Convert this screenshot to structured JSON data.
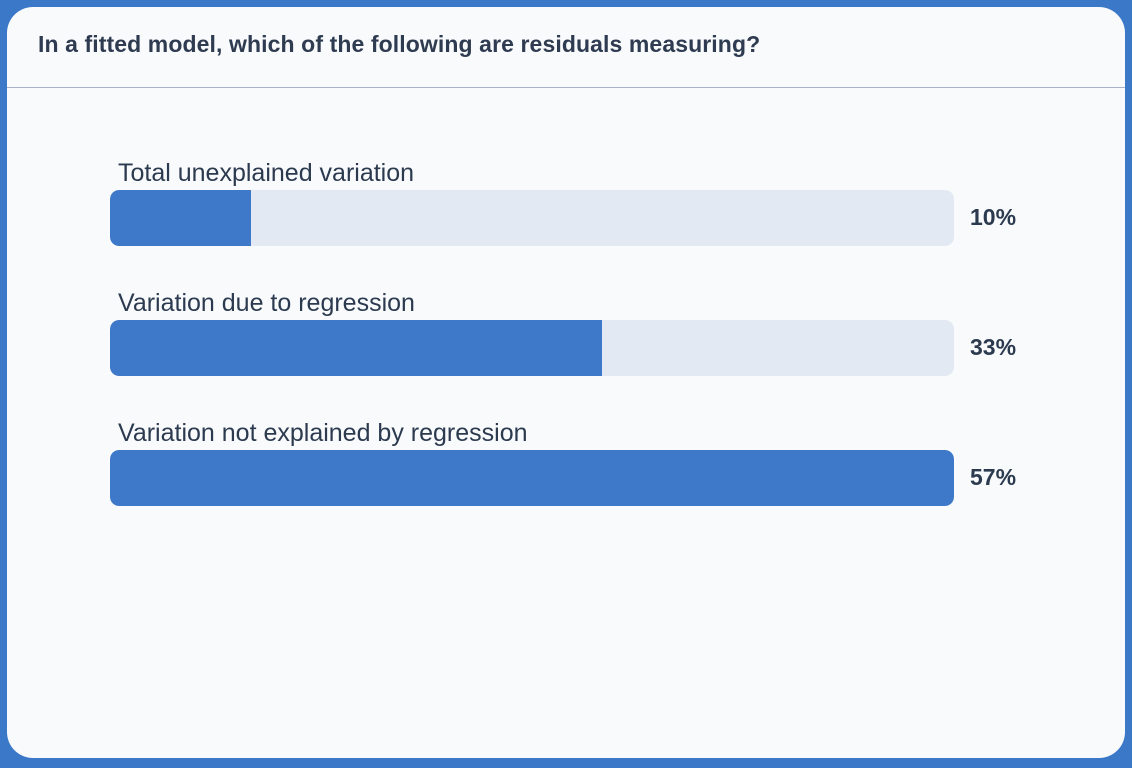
{
  "poll": {
    "question": "In a fitted model, which of the following are residuals measuring?",
    "colors": {
      "fill": "#3d78c9",
      "track": "#e3e9f2",
      "frame": "#3b78c8"
    },
    "options": [
      {
        "label": "Total unexplained variation",
        "percent_label": "10%",
        "fill_fraction": 0.167
      },
      {
        "label": "Variation due to regression",
        "percent_label": "33%",
        "fill_fraction": 0.583
      },
      {
        "label": "Variation not explained by regression",
        "percent_label": "57%",
        "fill_fraction": 1.0
      }
    ]
  }
}
